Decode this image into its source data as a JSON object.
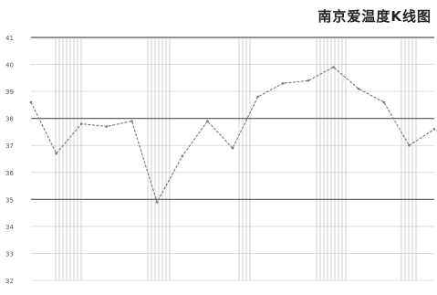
{
  "chart_data": {
    "type": "line",
    "title": "南京爱温度K线图",
    "y_ticks": [
      "41",
      "40",
      "39",
      "38",
      "37",
      "36",
      "35",
      "34",
      "33",
      "32"
    ],
    "y_values": [
      41,
      40,
      39,
      38,
      37,
      36,
      35,
      34,
      33,
      32
    ],
    "ylim": [
      32,
      41
    ],
    "emphasized_gridlines": [
      41,
      38,
      35
    ],
    "series": [
      {
        "values": [
          38.6,
          36.7,
          37.8,
          37.7,
          37.9,
          34.9,
          36.6,
          37.9,
          36.9,
          38.8,
          39.3,
          39.4,
          39.9,
          39.1,
          38.6,
          37.0,
          37.6
        ]
      }
    ],
    "grid": true,
    "line_color": "#777777",
    "gridline_color": "#888888",
    "band_color": "#d0d0d0"
  }
}
